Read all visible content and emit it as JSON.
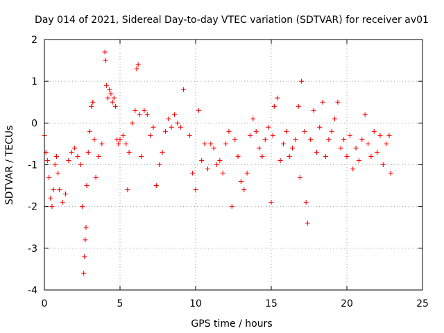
{
  "chart_data": {
    "type": "scatter",
    "title": "Day 014 of 2021, Sidereal Day-to-day VTEC variation (SDTVAR) for receiver av01",
    "xlabel": "GPS time / hours",
    "ylabel": "SDTVAR / TECUs",
    "xlim": [
      0,
      25
    ],
    "ylim": [
      -4,
      2
    ],
    "xticks": [
      0,
      5,
      10,
      15,
      20,
      25
    ],
    "yticks": [
      -4,
      -3,
      -2,
      -1,
      0,
      1,
      2
    ],
    "grid": true,
    "marker": "+",
    "color": "#ff0000",
    "series": [
      {
        "name": "SDTVAR",
        "x": [
          0.0,
          0.1,
          0.2,
          0.3,
          0.4,
          0.5,
          0.6,
          0.7,
          0.8,
          0.9,
          1.0,
          1.2,
          1.4,
          1.6,
          1.8,
          2.0,
          2.2,
          2.4,
          2.5,
          2.6,
          2.65,
          2.7,
          2.75,
          2.8,
          2.9,
          3.0,
          3.1,
          3.2,
          3.3,
          3.4,
          3.6,
          3.8,
          4.0,
          4.05,
          4.1,
          4.2,
          4.3,
          4.4,
          4.5,
          4.6,
          4.7,
          4.8,
          4.9,
          5.0,
          5.2,
          5.4,
          5.5,
          5.6,
          5.8,
          6.0,
          6.1,
          6.2,
          6.3,
          6.4,
          6.6,
          6.8,
          7.0,
          7.2,
          7.4,
          7.6,
          7.8,
          8.0,
          8.2,
          8.4,
          8.6,
          8.8,
          9.0,
          9.2,
          9.6,
          9.8,
          10.0,
          10.2,
          10.4,
          10.6,
          10.8,
          11.0,
          11.2,
          11.4,
          11.6,
          11.8,
          12.0,
          12.2,
          12.4,
          12.6,
          12.8,
          13.0,
          13.2,
          13.4,
          13.6,
          13.8,
          14.0,
          14.2,
          14.4,
          14.6,
          14.8,
          15.0,
          15.1,
          15.2,
          15.4,
          15.6,
          15.8,
          16.0,
          16.2,
          16.4,
          16.6,
          16.8,
          16.9,
          17.0,
          17.2,
          17.3,
          17.4,
          17.6,
          17.8,
          18.0,
          18.2,
          18.4,
          18.6,
          18.8,
          19.0,
          19.2,
          19.4,
          19.6,
          19.8,
          20.0,
          20.2,
          20.4,
          20.6,
          20.8,
          21.0,
          21.2,
          21.4,
          21.6,
          21.8,
          22.0,
          22.2,
          22.4,
          22.6,
          22.8,
          22.9
        ],
        "y": [
          -0.3,
          -0.7,
          -0.9,
          -1.3,
          -1.8,
          -2.0,
          -1.6,
          -1.0,
          -0.8,
          -1.2,
          -1.6,
          -1.9,
          -1.7,
          -0.9,
          -0.7,
          -0.6,
          -0.8,
          -1.0,
          -2.0,
          -3.6,
          -3.2,
          -2.8,
          -2.5,
          -1.5,
          -0.7,
          -0.2,
          0.4,
          0.5,
          -0.4,
          -1.3,
          -0.8,
          -0.5,
          1.7,
          1.5,
          0.9,
          0.6,
          0.8,
          0.7,
          0.5,
          0.6,
          0.4,
          -0.4,
          -0.5,
          -0.4,
          -0.3,
          -0.5,
          -1.6,
          -0.7,
          0.0,
          0.3,
          1.3,
          1.4,
          0.2,
          -0.8,
          0.3,
          0.2,
          -0.3,
          -0.1,
          -1.5,
          -1.0,
          -0.7,
          -0.2,
          0.1,
          -0.1,
          0.2,
          0.0,
          -0.1,
          0.8,
          -0.3,
          -1.2,
          -1.6,
          0.3,
          -0.9,
          -0.5,
          -1.1,
          -0.5,
          -0.6,
          -1.0,
          -0.9,
          -1.2,
          -0.5,
          -0.2,
          -2.0,
          -0.4,
          -0.8,
          -1.4,
          -1.6,
          -1.2,
          -0.3,
          0.1,
          -0.2,
          -0.6,
          -0.8,
          -0.4,
          -0.1,
          -1.9,
          -0.3,
          0.4,
          0.6,
          -0.9,
          -0.5,
          -0.2,
          -0.8,
          -0.6,
          -0.4,
          0.4,
          -1.3,
          1.0,
          -0.2,
          -1.9,
          -2.4,
          -0.4,
          0.3,
          -0.7,
          -0.1,
          0.5,
          -0.8,
          -0.4,
          -0.2,
          0.1,
          0.5,
          -0.6,
          -0.4,
          -0.8,
          -0.3,
          -1.1,
          -0.6,
          -0.9,
          -0.4,
          0.2,
          -0.5,
          -0.8,
          -0.2,
          -0.7,
          -0.3,
          -1.0,
          -0.5,
          -0.3,
          -1.2
        ]
      }
    ]
  }
}
